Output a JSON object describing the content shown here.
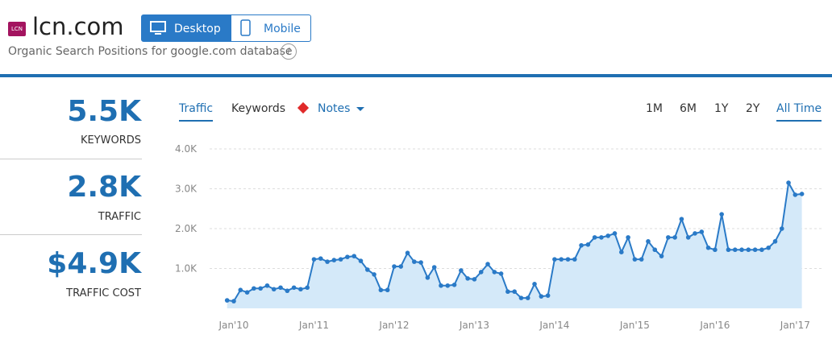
{
  "header": {
    "logo": "LCN",
    "site": "lcn.com",
    "devices": [
      "Desktop",
      "Mobile"
    ],
    "subtitle": "Organic Search Positions for google.com database",
    "info": "i"
  },
  "stats": [
    {
      "value": "5.5K",
      "label": "KEYWORDS"
    },
    {
      "value": "2.8K",
      "label": "TRAFFIC"
    },
    {
      "value": "$4.9K",
      "label": "TRAFFIC COST"
    }
  ],
  "tabs": [
    "Traffic",
    "Keywords",
    "Notes"
  ],
  "ranges": [
    "1M",
    "6M",
    "1Y",
    "2Y",
    "All Time"
  ],
  "chart_data": {
    "type": "line",
    "color": "#2a7ac7",
    "area_color": "#d4e9f9",
    "grid": true,
    "categories": [
      null,
      "Jan'10",
      null,
      null,
      null,
      null,
      null,
      null,
      null,
      null,
      null,
      null,
      null,
      "Jan'11",
      null,
      null,
      null,
      null,
      null,
      null,
      null,
      null,
      null,
      null,
      null,
      "Jan'12",
      null,
      null,
      null,
      null,
      null,
      null,
      null,
      null,
      null,
      null,
      null,
      "Jan'13",
      null,
      null,
      null,
      null,
      null,
      null,
      null,
      null,
      null,
      null,
      null,
      "Jan'14",
      null,
      null,
      null,
      null,
      null,
      null,
      null,
      null,
      null,
      null,
      null,
      "Jan'15",
      null,
      null,
      null,
      null,
      null,
      null,
      null,
      null,
      null,
      null,
      null,
      "Jan'16",
      null,
      null,
      null,
      null,
      null,
      null,
      null,
      null,
      null,
      null,
      null,
      "Jan'17",
      null
    ],
    "values": [
      200,
      180,
      460,
      400,
      500,
      500,
      570,
      480,
      520,
      440,
      520,
      480,
      520,
      1230,
      1250,
      1170,
      1210,
      1230,
      1290,
      1310,
      1190,
      970,
      850,
      460,
      460,
      1050,
      1050,
      1390,
      1170,
      1150,
      770,
      1030,
      570,
      570,
      590,
      950,
      750,
      730,
      910,
      1110,
      910,
      870,
      420,
      420,
      260,
      260,
      610,
      300,
      320,
      1230,
      1230,
      1230,
      1230,
      1580,
      1600,
      1780,
      1780,
      1820,
      1880,
      1410,
      1780,
      1230,
      1230,
      1680,
      1470,
      1310,
      1780,
      1780,
      2240,
      1780,
      1880,
      1920,
      1520,
      1470,
      2360,
      1470,
      1470,
      1470,
      1470,
      1470,
      1470,
      1520,
      1680,
      2000,
      3150,
      2850,
      2870
    ],
    "ylim": [
      0,
      4000
    ],
    "yticks": [
      {
        "value": 1000,
        "label": "1.0K"
      },
      {
        "value": 2000,
        "label": "2.0K"
      },
      {
        "value": 3000,
        "label": "3.0K"
      },
      {
        "value": 4000,
        "label": "4.0K"
      }
    ]
  }
}
